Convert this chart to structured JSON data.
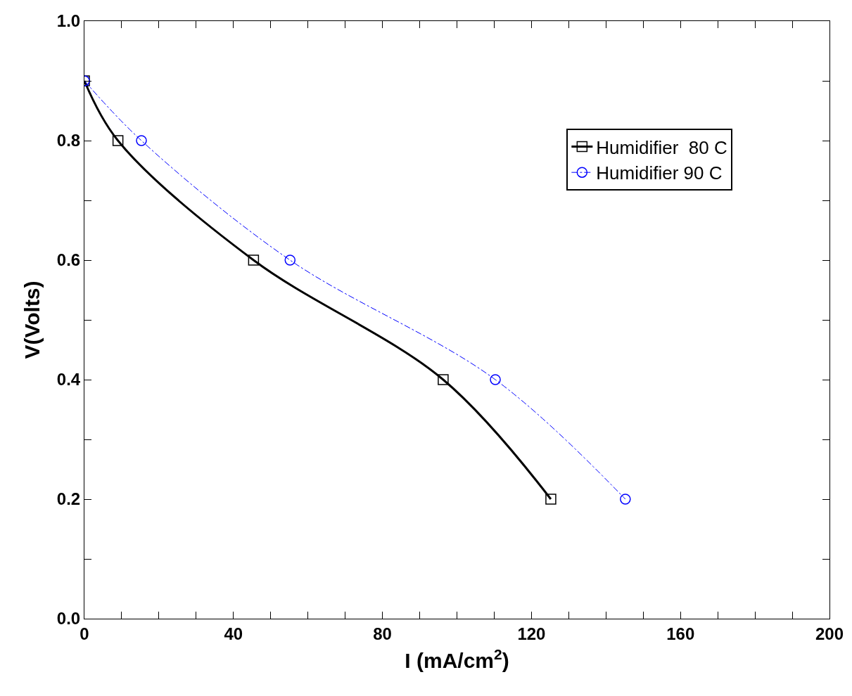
{
  "chart_data": {
    "type": "line",
    "xlabel": "I (mA/cm$^{2}$)",
    "ylabel": "V(Volts)",
    "xlim": [
      0,
      200
    ],
    "ylim": [
      0,
      1.0
    ],
    "xticks": [
      0,
      {
        "value": 10,
        "label": null
      },
      {
        "value": 20,
        "label": null
      },
      {
        "value": 30,
        "label": null
      },
      40,
      {
        "value": 50,
        "label": null
      },
      {
        "value": 60,
        "label": null
      },
      {
        "value": 70,
        "label": null
      },
      80,
      {
        "value": 90,
        "label": null
      },
      {
        "value": 100,
        "label": null
      },
      {
        "value": 110,
        "label": null
      },
      120,
      {
        "value": 130,
        "label": null
      },
      {
        "value": 140,
        "label": null
      },
      {
        "value": 150,
        "label": null
      },
      160,
      {
        "value": 170,
        "label": null
      },
      {
        "value": 180,
        "label": null
      },
      {
        "value": 190,
        "label": null
      },
      200
    ],
    "yticks": [
      {
        "value": 0,
        "label": "0.0"
      },
      {
        "value": 0.1,
        "label": null
      },
      {
        "value": 0.2,
        "label": "0.2"
      },
      {
        "value": 0.3,
        "label": null
      },
      {
        "value": 0.4,
        "label": "0.4"
      },
      {
        "value": 0.5,
        "label": null
      },
      {
        "value": 0.6,
        "label": "0.6"
      },
      {
        "value": 0.7,
        "label": null
      },
      {
        "value": 0.8,
        "label": "0.8"
      },
      {
        "value": 0.9,
        "label": null
      },
      {
        "value": 1.0,
        "label": "1.0"
      }
    ],
    "legend": "top right",
    "series": [
      {
        "name": "Humidifier  80 C",
        "color": "#000000",
        "marker": "square",
        "line_style": "solid",
        "x": [
          0,
          9,
          45.4,
          96.3,
          125.2
        ],
        "values": [
          0.9,
          0.8,
          0.6,
          0.4,
          0.2
        ]
      },
      {
        "name": "Humidifier 90 C",
        "color": "#0000ff",
        "marker": "circle",
        "line_style": "dashed",
        "x": [
          0,
          15.3,
          55.2,
          110.3,
          145.2
        ],
        "values": [
          0.9,
          0.8,
          0.6,
          0.4,
          0.2
        ]
      }
    ]
  }
}
